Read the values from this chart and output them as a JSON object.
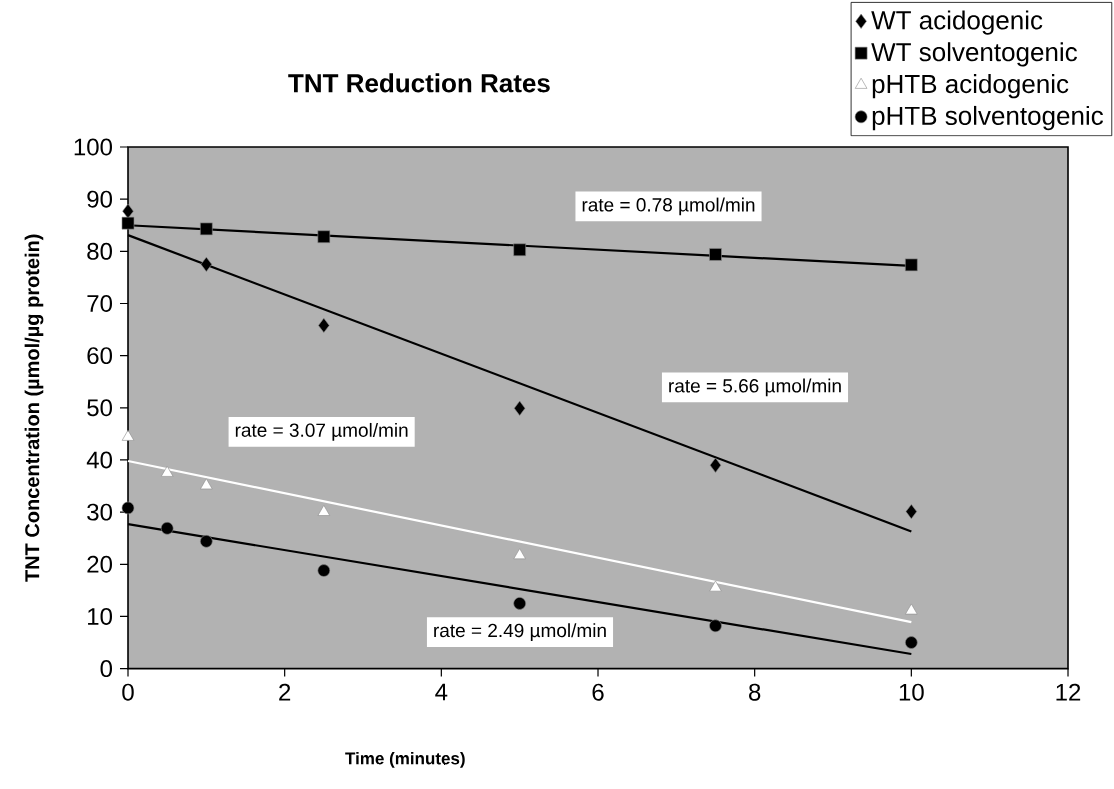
{
  "chart_data": {
    "type": "scatter",
    "title": "TNT Reduction Rates",
    "xlabel": "Time (minutes)",
    "ylabel": "TNT Concentration (µmol/µg protein)",
    "xlim": [
      0,
      12
    ],
    "xticks": [
      0,
      2,
      4,
      6,
      8,
      10,
      12
    ],
    "ylim": [
      0,
      100
    ],
    "yticks": [
      0,
      10,
      20,
      30,
      40,
      50,
      60,
      70,
      80,
      90,
      100
    ],
    "grid": false,
    "legend": "top right",
    "series": [
      {
        "name": "WT acidogenic",
        "color": "#000000",
        "marker": "diamond",
        "x": [
          0,
          1,
          2.5,
          5,
          7.5,
          10
        ],
        "values": [
          87.7,
          77.5,
          65.8,
          49.9,
          39.0,
          30.1
        ]
      },
      {
        "name": "WT solventogenic",
        "color": "#000000",
        "marker": "square",
        "x": [
          0,
          1,
          2.5,
          5,
          7.5,
          10
        ],
        "values": [
          85.4,
          84.3,
          82.8,
          80.3,
          79.4,
          77.4
        ]
      },
      {
        "name": "pHTB acidogenic",
        "color": "#ffffff",
        "marker": "triangle",
        "x": [
          0,
          0.5,
          1,
          2.5,
          5,
          7.5,
          10
        ],
        "values": [
          44.4,
          37.5,
          35.1,
          30.0,
          21.7,
          15.5,
          11.1
        ]
      },
      {
        "name": "pHTB solventogenic",
        "color": "#000000",
        "marker": "circle",
        "x": [
          0,
          0.5,
          1,
          2.5,
          5,
          7.5,
          10
        ],
        "values": [
          30.8,
          26.9,
          24.4,
          18.8,
          12.5,
          8.2,
          5.0
        ]
      },
      {
        "type": "line",
        "color": "#000000",
        "x": [
          0,
          10
        ],
        "values": [
          83.1,
          26.3
        ]
      },
      {
        "type": "line",
        "color": "#000000",
        "x": [
          0,
          10
        ],
        "values": [
          85.0,
          77.2
        ]
      },
      {
        "type": "line",
        "color": "#ffffff",
        "x": [
          0,
          10
        ],
        "values": [
          39.8,
          8.9
        ]
      },
      {
        "type": "line",
        "color": "#000000",
        "x": [
          0,
          10
        ],
        "values": [
          27.7,
          2.8
        ]
      }
    ],
    "annotations": [
      "rate = 0.78 µmol/min",
      "rate = 5.66 µmol/min",
      "rate = 3.07 µmol/min",
      "rate = 2.49 µmol/min"
    ]
  }
}
